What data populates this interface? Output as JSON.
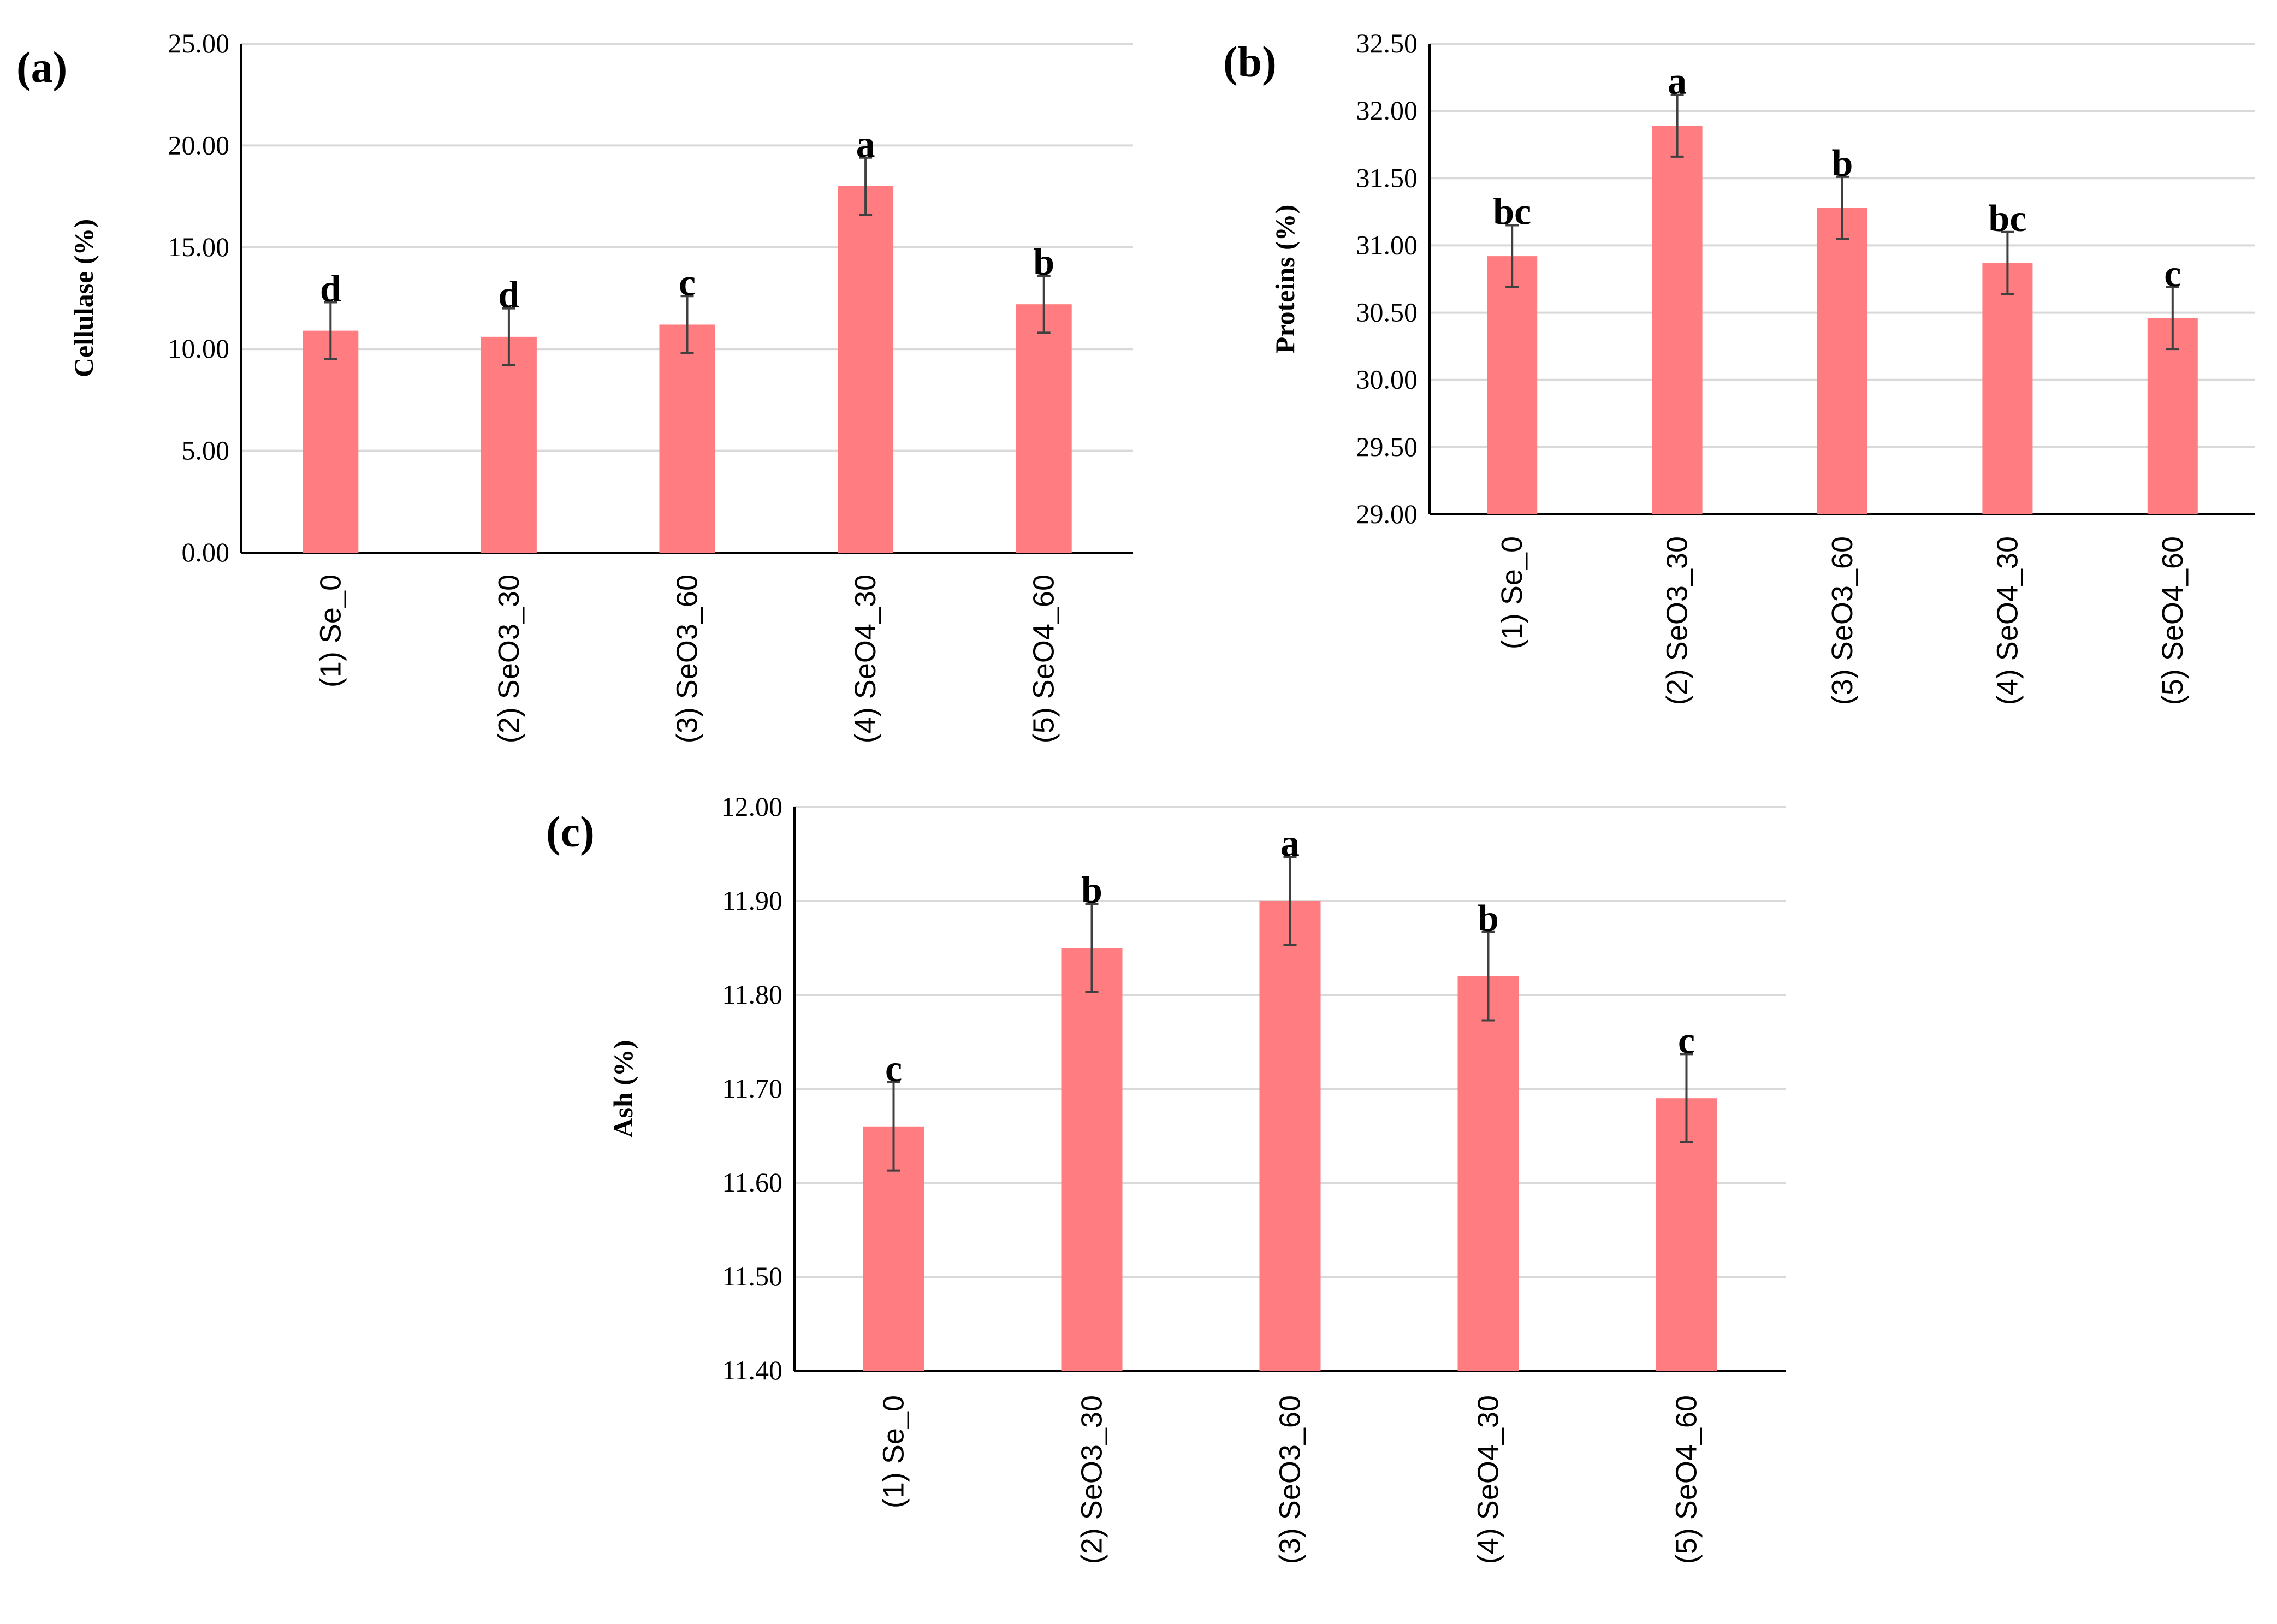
{
  "chart_data": [
    {
      "type": "bar",
      "panel": "(a)",
      "ylabel": "Cellulase (%)",
      "ylim": [
        0,
        25
      ],
      "yticks": [
        "0.00",
        "5.00",
        "10.00",
        "15.00",
        "20.00",
        "25.00"
      ],
      "categories": [
        "(1) Se_0",
        "(2) SeO3_30",
        "(3) SeO3_60",
        "(4) SeO4_30",
        "(5) SeO4_60"
      ],
      "values": [
        10.9,
        10.6,
        11.2,
        18.0,
        12.2
      ],
      "errors": [
        1.4,
        1.4,
        1.4,
        1.4,
        1.4
      ],
      "letters": [
        "d",
        "d",
        "c",
        "a",
        "b"
      ],
      "color": "#ff7c80"
    },
    {
      "type": "bar",
      "panel": "(b)",
      "ylabel": "Proteins (%)",
      "ylim": [
        29,
        32.5
      ],
      "yticks": [
        "29.00",
        "29.50",
        "30.00",
        "30.50",
        "31.00",
        "31.50",
        "32.00",
        "32.50"
      ],
      "categories": [
        "(1) Se_0",
        "(2) SeO3_30",
        "(3) SeO3_60",
        "(4) SeO4_30",
        "(5) SeO4_60"
      ],
      "values": [
        30.92,
        31.89,
        31.28,
        30.87,
        30.46
      ],
      "errors": [
        0.23,
        0.23,
        0.23,
        0.23,
        0.23
      ],
      "letters": [
        "bc",
        "a",
        "b",
        "bc",
        "c"
      ],
      "color": "#ff7c80"
    },
    {
      "type": "bar",
      "panel": "(c)",
      "ylabel": "Ash (%)",
      "ylim": [
        11.4,
        12.0
      ],
      "yticks": [
        "11.40",
        "11.50",
        "11.60",
        "11.70",
        "11.80",
        "11.90",
        "12.00"
      ],
      "categories": [
        "(1) Se_0",
        "(2) SeO3_30",
        "(3) SeO3_60",
        "(4) SeO4_30",
        "(5) SeO4_60"
      ],
      "values": [
        11.66,
        11.85,
        11.9,
        11.82,
        11.69
      ],
      "errors": [
        0.047,
        0.047,
        0.047,
        0.047,
        0.047
      ],
      "letters": [
        "c",
        "b",
        "a",
        "b",
        "c"
      ],
      "color": "#ff7c80"
    }
  ]
}
